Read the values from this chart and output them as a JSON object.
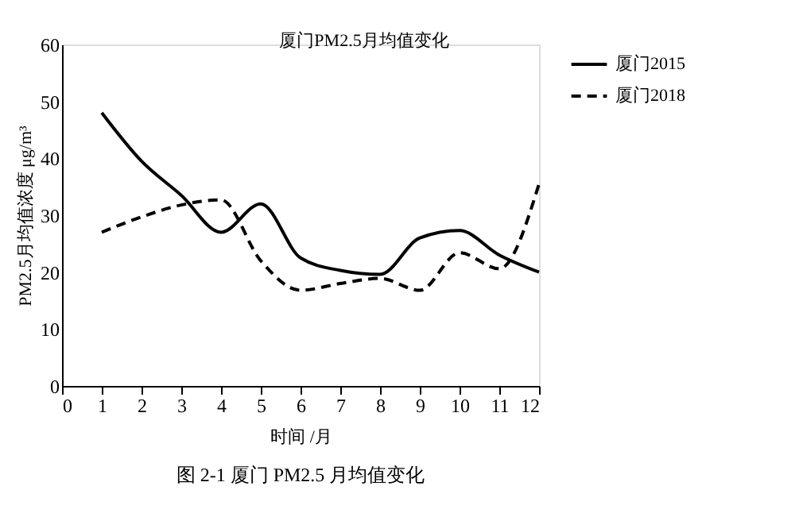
{
  "chart_data": {
    "type": "line",
    "title": "厦门PM2.5月均值变化",
    "xlabel": "时间   /月",
    "ylabel": "PM2.5月均值浓度  μg/m³",
    "x": [
      1,
      2,
      3,
      4,
      5,
      6,
      7,
      8,
      9,
      10,
      11,
      12
    ],
    "series": [
      {
        "name": "厦门2015",
        "color": "#000000",
        "line_style": "solid",
        "values": [
          48,
          39.5,
          33.5,
          27,
          32,
          22.5,
          20.3,
          19.6,
          26,
          27.3,
          23,
          20
        ]
      },
      {
        "name": "厦门2018",
        "color": "#000000",
        "line_style": "dashed",
        "values": [
          27,
          29.7,
          31.8,
          32.7,
          22,
          16.8,
          18,
          18.9,
          16.8,
          23.4,
          20.6,
          35.5
        ]
      }
    ],
    "xlim": [
      0,
      12
    ],
    "xticks": [
      0,
      1,
      2,
      3,
      4,
      5,
      6,
      7,
      8,
      9,
      10,
      11,
      12
    ],
    "ylim": [
      0,
      60
    ],
    "yticks": [
      0,
      10,
      20,
      30,
      40,
      50,
      60
    ],
    "grid": false,
    "legend": "right",
    "marker": "none",
    "annotations": [
      "图 2-1    厦门 PM2.5 月均值变化"
    ]
  }
}
